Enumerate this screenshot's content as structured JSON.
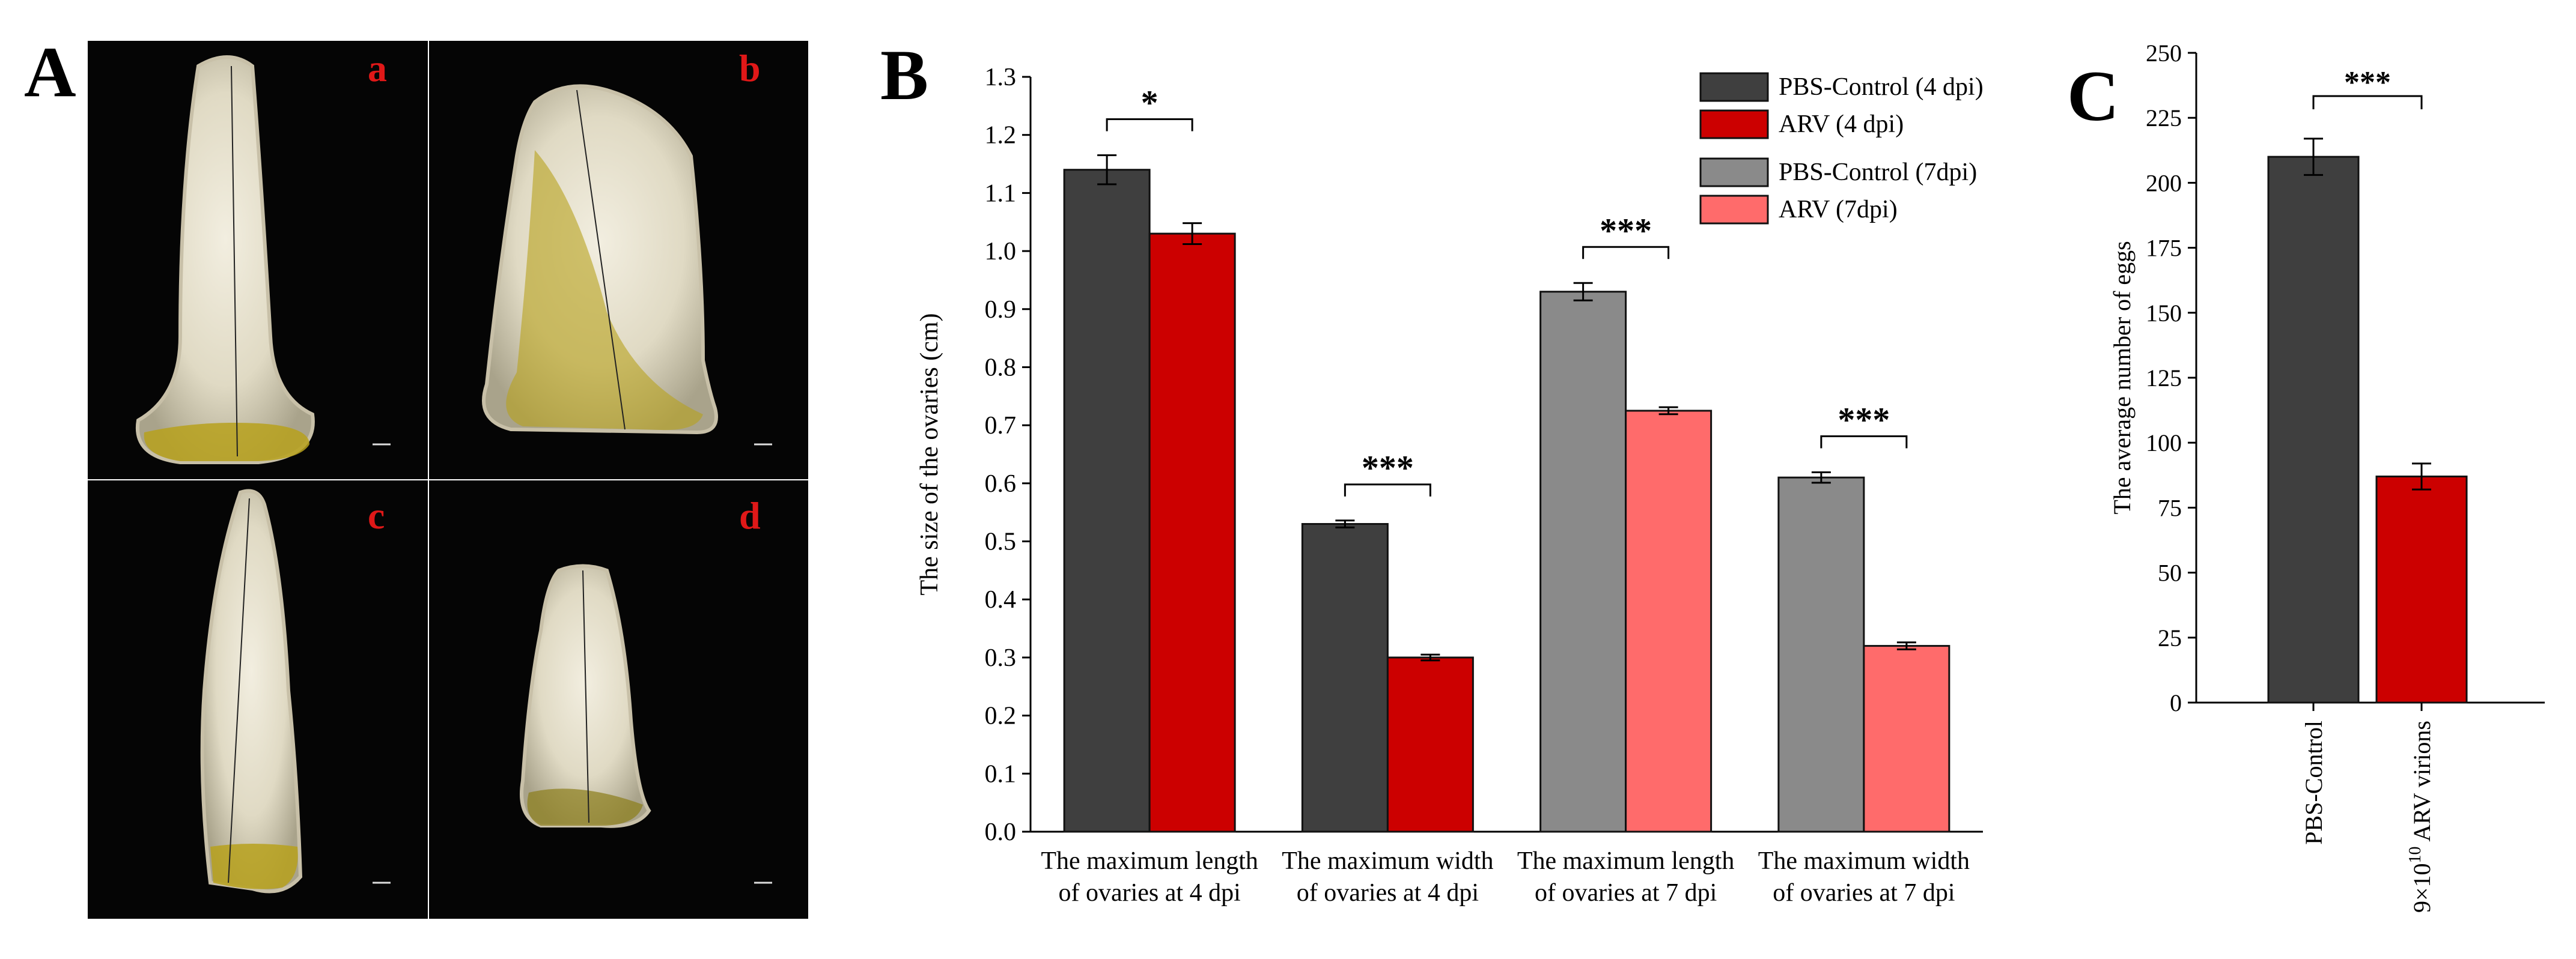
{
  "panels": {
    "A": {
      "letter": "A",
      "subpanels": [
        "a",
        "b",
        "c",
        "d"
      ],
      "subpanel_color": "#e01818"
    },
    "B": {
      "letter": "B"
    },
    "C": {
      "letter": "C"
    }
  },
  "colors": {
    "pbs_4dpi": "#3f3f3f",
    "arv_4dpi": "#cc0000",
    "pbs_7dpi": "#8a8a8a",
    "arv_7dpi": "#ff6b6b"
  },
  "chart_data": [
    {
      "panel": "B",
      "type": "bar",
      "ylabel": "The size of the ovaries (cm)",
      "ylim": [
        0,
        1.3
      ],
      "yticks": [
        "0.0",
        "0.1",
        "0.2",
        "0.3",
        "0.4",
        "0.5",
        "0.6",
        "0.7",
        "0.8",
        "0.9",
        "1.0",
        "1.1",
        "1.2",
        "1.3"
      ],
      "categories": [
        {
          "line1": "The maximum length",
          "line2": "of ovaries at 4 dpi"
        },
        {
          "line1": "The maximum width",
          "line2": "of ovaries at 4 dpi"
        },
        {
          "line1": "The maximum length",
          "line2": "of ovaries at 7 dpi"
        },
        {
          "line1": "The maximum width",
          "line2": "of ovaries at 7 dpi"
        }
      ],
      "legend": [
        {
          "label": "PBS-Control (4 dpi)",
          "color": "#3f3f3f"
        },
        {
          "label": "ARV (4 dpi)",
          "color": "#cc0000"
        },
        {
          "label": "PBS-Control (7dpi)",
          "color": "#8a8a8a"
        },
        {
          "label": "ARV (7dpi)",
          "color": "#ff6b6b"
        }
      ],
      "legend_position": "top-right",
      "groups": [
        {
          "control": 1.14,
          "control_err": 0.025,
          "control_color": "#3f3f3f",
          "arv": 1.03,
          "arv_err": 0.018,
          "arv_color": "#cc0000",
          "sig": "*"
        },
        {
          "control": 0.53,
          "control_err": 0.006,
          "control_color": "#3f3f3f",
          "arv": 0.3,
          "arv_err": 0.005,
          "arv_color": "#cc0000",
          "sig": "***"
        },
        {
          "control": 0.93,
          "control_err": 0.015,
          "control_color": "#8a8a8a",
          "arv": 0.725,
          "arv_err": 0.006,
          "arv_color": "#ff6b6b",
          "sig": "***"
        },
        {
          "control": 0.61,
          "control_err": 0.009,
          "control_color": "#8a8a8a",
          "arv": 0.32,
          "arv_err": 0.006,
          "arv_color": "#ff6b6b",
          "sig": "***"
        }
      ]
    },
    {
      "panel": "C",
      "type": "bar",
      "ylabel": "The average number of eggs",
      "ylim": [
        0,
        250
      ],
      "yticks": [
        "0",
        "25",
        "50",
        "75",
        "100",
        "125",
        "150",
        "175",
        "200",
        "225",
        "250"
      ],
      "categories": [
        "PBS-Control",
        "9×10",
        "10",
        " ARV virions"
      ],
      "bars": [
        {
          "label": "PBS-Control",
          "value": 210,
          "err": 7,
          "color": "#3f3f3f"
        },
        {
          "label": "9×1010 ARV virions",
          "value": 87,
          "err": 5,
          "color": "#cc0000"
        }
      ],
      "sig": "***"
    }
  ]
}
